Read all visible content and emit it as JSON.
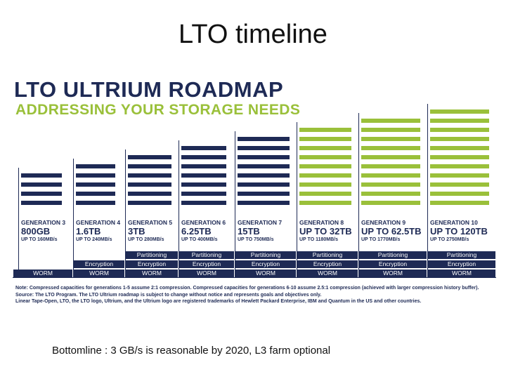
{
  "slide": {
    "title": "LTO timeline",
    "bottomline": "Bottomline : 3 GB/s is reasonable by 2020, L3 farm optional"
  },
  "graphic": {
    "headline": "LTO ULTRIUM ROADMAP",
    "subline": "ADDRESSING YOUR STORAGE NEEDS",
    "colors": {
      "navy": "#1e2a55",
      "green": "#9ac03a"
    },
    "generations": [
      {
        "label": "GENERATION 3",
        "capacity": "800GB",
        "speed": "UP TO 160MB/s",
        "stack_units": 4,
        "color": "navy",
        "features": [
          "WORM"
        ]
      },
      {
        "label": "GENERATION 4",
        "capacity": "1.6TB",
        "speed": "UP TO 240MB/s",
        "stack_units": 5,
        "color": "navy",
        "features": [
          "Encryption",
          "WORM"
        ]
      },
      {
        "label": "GENERATION 5",
        "capacity": "3TB",
        "speed": "UP TO 280MB/s",
        "stack_units": 6,
        "color": "navy",
        "features": [
          "Partitioning",
          "Encryption",
          "WORM"
        ]
      },
      {
        "label": "GENERATION 6",
        "capacity": "6.25TB",
        "speed": "UP TO 400MB/s",
        "stack_units": 7,
        "color": "navy",
        "features": [
          "Partitioning",
          "Encryption",
          "WORM"
        ]
      },
      {
        "label": "GENERATION 7",
        "capacity": "15TB",
        "speed": "UP TO 750MB/s",
        "stack_units": 8,
        "color": "navy",
        "features": [
          "Partitioning",
          "Encryption",
          "WORM"
        ]
      },
      {
        "label": "GENERATION 8",
        "capacity": "UP TO 32TB",
        "speed": "UP TO 1180MB/s",
        "stack_units": 9,
        "color": "green",
        "features": [
          "Partitioning",
          "Encryption",
          "WORM"
        ]
      },
      {
        "label": "GENERATION 9",
        "capacity": "UP TO 62.5TB",
        "speed": "UP TO 1770MB/s",
        "stack_units": 10,
        "color": "green",
        "features": [
          "Partitioning",
          "Encryption",
          "WORM"
        ]
      },
      {
        "label": "GENERATION 10",
        "capacity": "UP TO 120TB",
        "speed": "UP TO 2750MB/s",
        "stack_units": 11,
        "color": "green",
        "features": [
          "Partitioning",
          "Encryption",
          "WORM"
        ]
      }
    ],
    "notes": [
      "Note:  Compressed capacities for generations 1-5 assume 2:1 compression. Compressed capacities for generations 6-10 assume 2.5:1 compression (achieved with larger compression history buffer).",
      "Source:  The LTO Program. The LTO Ultrium roadmap is subject to change without notice and represents goals and objectives only.",
      "Linear Tape-Open, LTO, the LTO logo, Ultrium, and the Ultrium logo are registered trademarks of Hewlett Packard Enterprise, IBM and Quantum in the US and other countries."
    ]
  }
}
